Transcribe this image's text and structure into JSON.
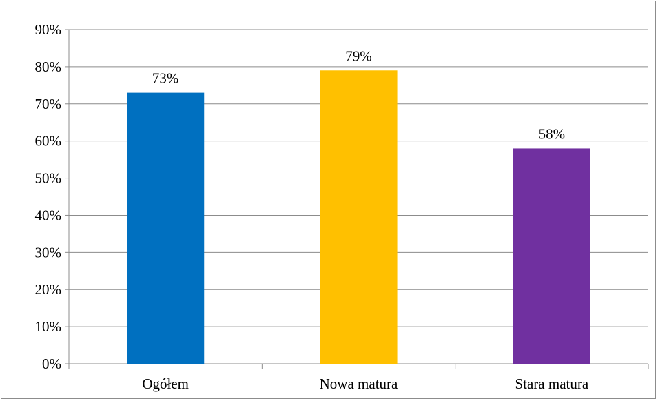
{
  "chart_data": {
    "type": "bar",
    "title": "",
    "xlabel": "",
    "ylabel": "",
    "categories": [
      "Ogółem",
      "Nowa matura",
      "Stara matura"
    ],
    "values": [
      73,
      79,
      58
    ],
    "data_labels": [
      "73%",
      "79%",
      "58%"
    ],
    "colors": [
      "#0070c0",
      "#ffc000",
      "#7030a0"
    ],
    "ylim": [
      0,
      90
    ],
    "y_ticks": [
      0,
      10,
      20,
      30,
      40,
      50,
      60,
      70,
      80,
      90
    ],
    "y_tick_labels": [
      "0%",
      "10%",
      "20%",
      "30%",
      "40%",
      "50%",
      "60%",
      "70%",
      "80%",
      "90%"
    ],
    "grid": true,
    "legend": "none"
  }
}
